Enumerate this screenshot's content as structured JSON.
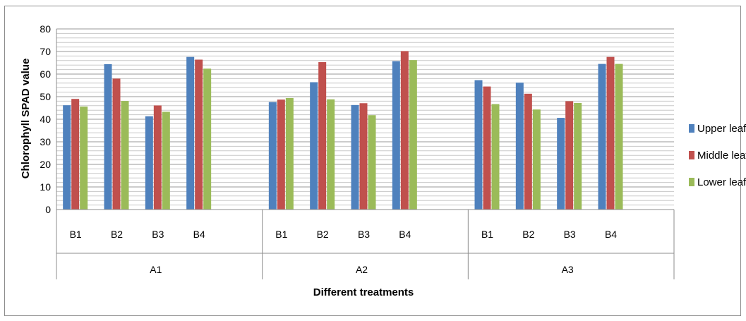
{
  "chart_data": {
    "type": "bar",
    "title": "",
    "xlabel": "Different treatments",
    "ylabel": "Chlorophyll SPAD value",
    "ylim": [
      0,
      80
    ],
    "yticks": [
      0,
      10,
      20,
      30,
      40,
      50,
      60,
      70,
      80
    ],
    "grid": true,
    "legend": "right",
    "groups": [
      {
        "label": "A1",
        "categories": [
          "B1",
          "B2",
          "B3",
          "B4"
        ]
      },
      {
        "label": "A2",
        "categories": [
          "B1",
          "B2",
          "B3",
          "B4"
        ]
      },
      {
        "label": "A3",
        "categories": [
          "B1",
          "B2",
          "B3",
          "B4"
        ]
      }
    ],
    "categories": [
      "A1-B1",
      "A1-B2",
      "A1-B3",
      "A1-B4",
      "A2-B1",
      "A2-B2",
      "A2-B3",
      "A2-B4",
      "A3-B1",
      "A3-B2",
      "A3-B3",
      "A3-B4"
    ],
    "series": [
      {
        "name": "Upper leaf",
        "color": "#4f81bd",
        "values": [
          46.2,
          64.4,
          41.3,
          67.6,
          47.6,
          56.4,
          46.3,
          65.7,
          57.3,
          56.2,
          40.6,
          64.5
        ]
      },
      {
        "name": "Middle leaf",
        "color": "#c0504d",
        "values": [
          49.0,
          58.0,
          46.1,
          66.4,
          48.7,
          65.3,
          47.1,
          70.2,
          54.5,
          51.3,
          48.0,
          67.6
        ]
      },
      {
        "name": "Lower leaf",
        "color": "#9bbb59",
        "values": [
          45.6,
          48.1,
          43.3,
          62.4,
          49.4,
          48.8,
          41.8,
          66.2,
          46.7,
          44.3,
          47.2,
          64.5
        ]
      }
    ]
  }
}
